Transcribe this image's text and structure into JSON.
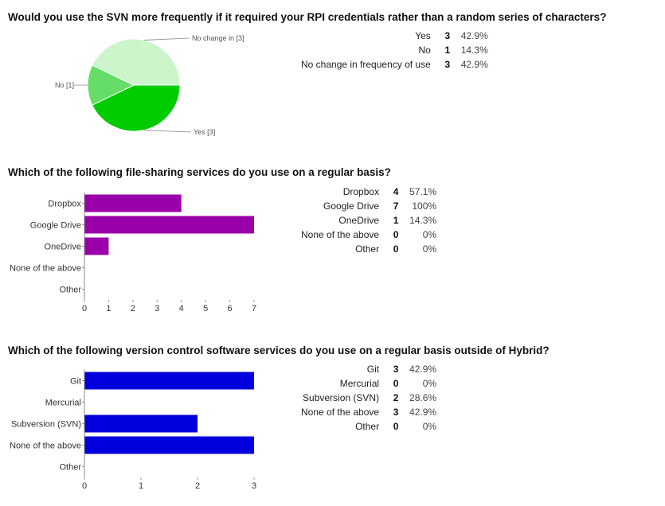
{
  "questions": [
    {
      "title": "Would you use the SVN more frequently if it required your RPI credentials rather than a random series of characters?",
      "stats": [
        {
          "label": "Yes",
          "count": "3",
          "percent": "42.9%"
        },
        {
          "label": "No",
          "count": "1",
          "percent": "14.3%"
        },
        {
          "label": "No change in frequency of use",
          "count": "3",
          "percent": "42.9%"
        }
      ]
    },
    {
      "title": "Which of the following file-sharing services do you use on a regular basis?",
      "stats": [
        {
          "label": "Dropbox",
          "count": "4",
          "percent": "57.1%"
        },
        {
          "label": "Google Drive",
          "count": "7",
          "percent": "100%"
        },
        {
          "label": "OneDrive",
          "count": "1",
          "percent": "14.3%"
        },
        {
          "label": "None of the above",
          "count": "0",
          "percent": "0%"
        },
        {
          "label": "Other",
          "count": "0",
          "percent": "0%"
        }
      ]
    },
    {
      "title": "Which of the following version control software services do you use on a regular basis outside of Hybrid?",
      "stats": [
        {
          "label": "Git",
          "count": "3",
          "percent": "42.9%"
        },
        {
          "label": "Mercurial",
          "count": "0",
          "percent": "0%"
        },
        {
          "label": "Subversion (SVN)",
          "count": "2",
          "percent": "28.6%"
        },
        {
          "label": "None of the above",
          "count": "3",
          "percent": "42.9%"
        },
        {
          "label": "Other",
          "count": "0",
          "percent": "0%"
        }
      ]
    }
  ],
  "chart_data": [
    {
      "type": "pie",
      "slices": [
        {
          "label": "Yes [3]",
          "value": 3,
          "color": "#00cc00"
        },
        {
          "label": "No [1]",
          "value": 1,
          "color": "#66dd66"
        },
        {
          "label": "No change in [3]",
          "value": 3,
          "color": "#ccf5cc"
        }
      ]
    },
    {
      "type": "bar",
      "orientation": "horizontal",
      "categories": [
        "Dropbox",
        "Google Drive",
        "OneDrive",
        "None of the above",
        "Other"
      ],
      "values": [
        4,
        7,
        1,
        0,
        0
      ],
      "color": "#9900aa",
      "xlim": [
        0,
        7
      ],
      "xticks": [
        "0",
        "1",
        "2",
        "3",
        "4",
        "5",
        "6",
        "7"
      ]
    },
    {
      "type": "bar",
      "orientation": "horizontal",
      "categories": [
        "Git",
        "Mercurial",
        "Subversion (SVN)",
        "None of the above",
        "Other"
      ],
      "values": [
        3,
        0,
        2,
        3,
        0
      ],
      "color": "#0000dd",
      "xlim": [
        0,
        3
      ],
      "xticks": [
        "0",
        "1",
        "2",
        "3"
      ]
    }
  ]
}
